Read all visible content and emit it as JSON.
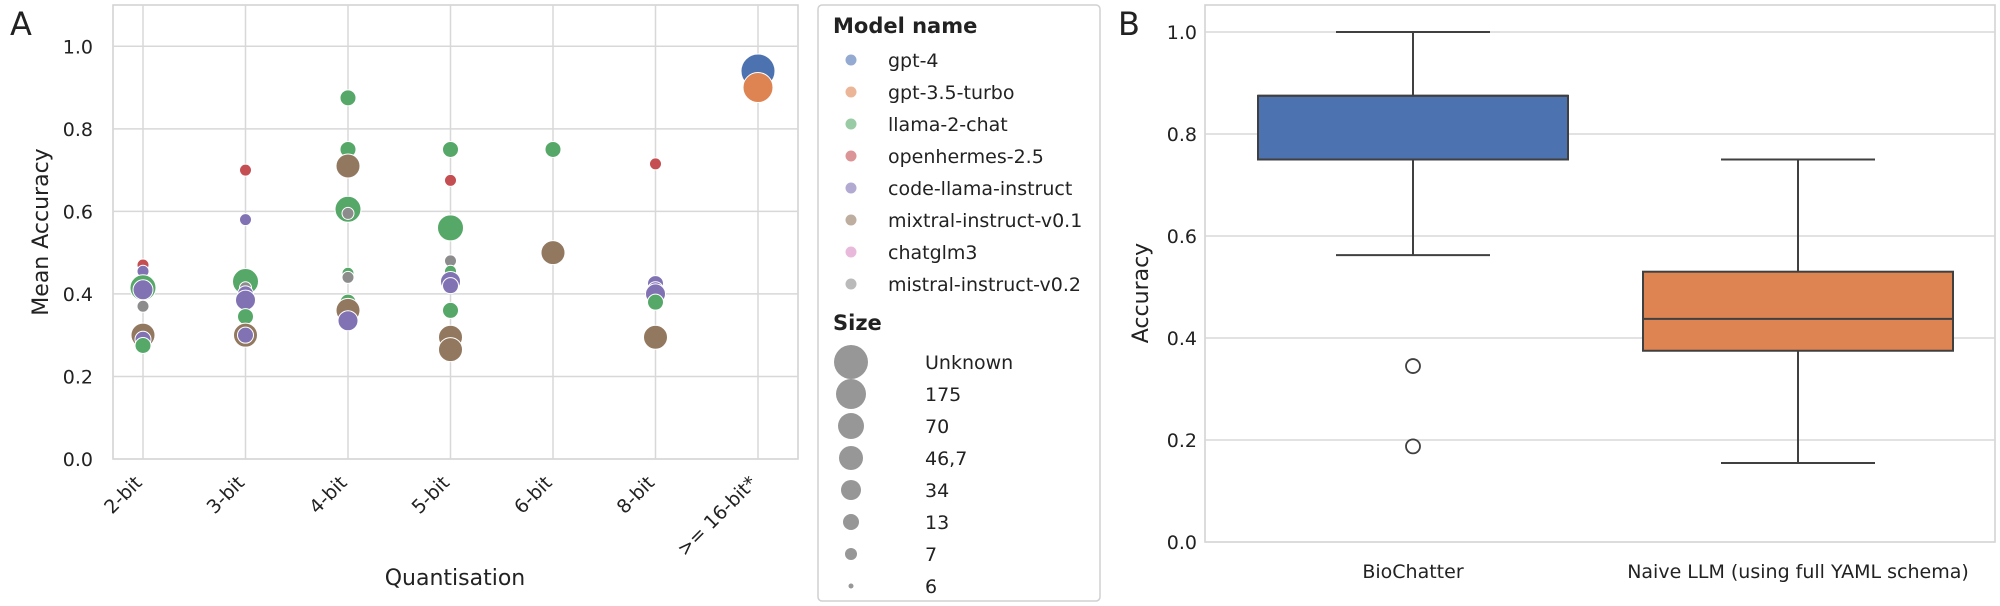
{
  "panels": {
    "a": "A",
    "b": "B"
  },
  "chart_data": [
    {
      "type": "scatter",
      "xlabel": "Quantisation",
      "ylabel": "Mean Accuracy",
      "ylim": [
        0.0,
        1.1
      ],
      "yticks": [
        "0.0",
        "0.2",
        "0.4",
        "0.6",
        "0.8",
        "1.0"
      ],
      "categories": [
        "2-bit",
        "3-bit",
        "4-bit",
        "5-bit",
        "6-bit",
        "8-bit",
        ">= 16-bit*"
      ],
      "grid": true,
      "legend_placement": "right, outside plot",
      "legend": {
        "model_title": "Model name",
        "models": [
          {
            "name": "gpt-4",
            "color": "#4c72b0"
          },
          {
            "name": "gpt-3.5-turbo",
            "color": "#dd8452"
          },
          {
            "name": "llama-2-chat",
            "color": "#55a868"
          },
          {
            "name": "openhermes-2.5",
            "color": "#c44e52"
          },
          {
            "name": "code-llama-instruct",
            "color": "#8172b3"
          },
          {
            "name": "mixtral-instruct-v0.1",
            "color": "#937860"
          },
          {
            "name": "chatglm3",
            "color": "#da8bc3"
          },
          {
            "name": "mistral-instruct-v0.2",
            "color": "#8c8c8c"
          }
        ],
        "size_title": "Size",
        "sizes": [
          "Unknown",
          "175",
          "70",
          "46,7",
          "34",
          "13",
          "7",
          "6"
        ]
      },
      "points": [
        {
          "x": "2-bit",
          "y": 0.47,
          "model": "openhermes-2.5",
          "size": "7"
        },
        {
          "x": "2-bit",
          "y": 0.455,
          "model": "code-llama-instruct",
          "size": "7"
        },
        {
          "x": "2-bit",
          "y": 0.415,
          "model": "llama-2-chat",
          "size": "70"
        },
        {
          "x": "2-bit",
          "y": 0.41,
          "model": "code-llama-instruct",
          "size": "34"
        },
        {
          "x": "2-bit",
          "y": 0.37,
          "model": "mistral-instruct-v0.2",
          "size": "7"
        },
        {
          "x": "2-bit",
          "y": 0.3,
          "model": "mixtral-instruct-v0.1",
          "size": "46,7"
        },
        {
          "x": "2-bit",
          "y": 0.29,
          "model": "code-llama-instruct",
          "size": "13"
        },
        {
          "x": "2-bit",
          "y": 0.275,
          "model": "llama-2-chat",
          "size": "13"
        },
        {
          "x": "3-bit",
          "y": 0.7,
          "model": "openhermes-2.5",
          "size": "7"
        },
        {
          "x": "3-bit",
          "y": 0.58,
          "model": "code-llama-instruct",
          "size": "7"
        },
        {
          "x": "3-bit",
          "y": 0.43,
          "model": "llama-2-chat",
          "size": "70"
        },
        {
          "x": "3-bit",
          "y": 0.415,
          "model": "mistral-instruct-v0.2",
          "size": "7"
        },
        {
          "x": "3-bit",
          "y": 0.4,
          "model": "code-llama-instruct",
          "size": "13"
        },
        {
          "x": "3-bit",
          "y": 0.385,
          "model": "code-llama-instruct",
          "size": "34"
        },
        {
          "x": "3-bit",
          "y": 0.345,
          "model": "llama-2-chat",
          "size": "13"
        },
        {
          "x": "3-bit",
          "y": 0.3,
          "model": "mixtral-instruct-v0.1",
          "size": "46,7"
        },
        {
          "x": "3-bit",
          "y": 0.3,
          "model": "code-llama-instruct",
          "size": "13"
        },
        {
          "x": "4-bit",
          "y": 0.875,
          "model": "llama-2-chat",
          "size": "13"
        },
        {
          "x": "4-bit",
          "y": 0.75,
          "model": "llama-2-chat",
          "size": "13"
        },
        {
          "x": "4-bit",
          "y": 0.71,
          "model": "mixtral-instruct-v0.1",
          "size": "46,7"
        },
        {
          "x": "4-bit",
          "y": 0.62,
          "model": "mixtral-instruct-v0.1",
          "size": "7"
        },
        {
          "x": "4-bit",
          "y": 0.605,
          "model": "llama-2-chat",
          "size": "70"
        },
        {
          "x": "4-bit",
          "y": 0.595,
          "model": "mistral-instruct-v0.2",
          "size": "7"
        },
        {
          "x": "4-bit",
          "y": 0.45,
          "model": "llama-2-chat",
          "size": "7"
        },
        {
          "x": "4-bit",
          "y": 0.44,
          "model": "mistral-instruct-v0.2",
          "size": "7"
        },
        {
          "x": "4-bit",
          "y": 0.38,
          "model": "llama-2-chat",
          "size": "13"
        },
        {
          "x": "4-bit",
          "y": 0.36,
          "model": "mixtral-instruct-v0.1",
          "size": "46,7"
        },
        {
          "x": "4-bit",
          "y": 0.335,
          "model": "code-llama-instruct",
          "size": "34"
        },
        {
          "x": "5-bit",
          "y": 0.75,
          "model": "llama-2-chat",
          "size": "13"
        },
        {
          "x": "5-bit",
          "y": 0.675,
          "model": "openhermes-2.5",
          "size": "7"
        },
        {
          "x": "5-bit",
          "y": 0.56,
          "model": "llama-2-chat",
          "size": "70"
        },
        {
          "x": "5-bit",
          "y": 0.48,
          "model": "mistral-instruct-v0.2",
          "size": "7"
        },
        {
          "x": "5-bit",
          "y": 0.455,
          "model": "llama-2-chat",
          "size": "7"
        },
        {
          "x": "5-bit",
          "y": 0.43,
          "model": "code-llama-instruct",
          "size": "34"
        },
        {
          "x": "5-bit",
          "y": 0.42,
          "model": "code-llama-instruct",
          "size": "13"
        },
        {
          "x": "5-bit",
          "y": 0.36,
          "model": "llama-2-chat",
          "size": "13"
        },
        {
          "x": "5-bit",
          "y": 0.295,
          "model": "mixtral-instruct-v0.1",
          "size": "46,7"
        },
        {
          "x": "5-bit",
          "y": 0.265,
          "model": "mixtral-instruct-v0.1",
          "size": "46,7"
        },
        {
          "x": "6-bit",
          "y": 0.75,
          "model": "llama-2-chat",
          "size": "13"
        },
        {
          "x": "6-bit",
          "y": 0.5,
          "model": "mixtral-instruct-v0.1",
          "size": "46,7"
        },
        {
          "x": "8-bit",
          "y": 0.715,
          "model": "openhermes-2.5",
          "size": "7"
        },
        {
          "x": "8-bit",
          "y": 0.425,
          "model": "code-llama-instruct",
          "size": "13"
        },
        {
          "x": "8-bit",
          "y": 0.41,
          "model": "code-llama-instruct",
          "size": "13"
        },
        {
          "x": "8-bit",
          "y": 0.4,
          "model": "code-llama-instruct",
          "size": "34"
        },
        {
          "x": "8-bit",
          "y": 0.38,
          "model": "llama-2-chat",
          "size": "13"
        },
        {
          "x": "8-bit",
          "y": 0.295,
          "model": "mixtral-instruct-v0.1",
          "size": "46,7"
        },
        {
          "x": ">= 16-bit*",
          "y": 0.94,
          "model": "gpt-4",
          "size": "Unknown"
        },
        {
          "x": ">= 16-bit*",
          "y": 0.9,
          "model": "gpt-3.5-turbo",
          "size": "175"
        }
      ]
    },
    {
      "type": "box",
      "xlabel": "",
      "ylabel": "Accuracy",
      "ylim": [
        0.0,
        1.0
      ],
      "yticks": [
        "0.0",
        "0.2",
        "0.4",
        "0.6",
        "0.8",
        "1.0"
      ],
      "grid": true,
      "categories": [
        "BioChatter",
        "Naive LLM (using full YAML schema)"
      ],
      "boxes": [
        {
          "name": "BioChatter",
          "color": "#4c72b0",
          "whisker_low": 0.5625,
          "q1": 0.75,
          "median": 0.875,
          "q3": 0.875,
          "whisker_high": 1.0,
          "outliers": [
            0.345,
            0.1875
          ]
        },
        {
          "name": "Naive LLM (using full YAML schema)",
          "color": "#dd8452",
          "whisker_low": 0.155,
          "q1": 0.375,
          "median": 0.4375,
          "q3": 0.53,
          "whisker_high": 0.75,
          "outliers": []
        }
      ]
    }
  ]
}
